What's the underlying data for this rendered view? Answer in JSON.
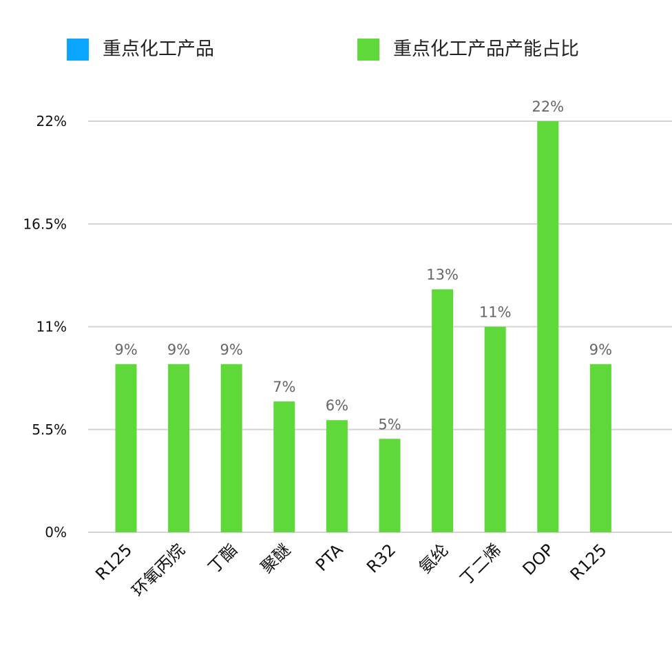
{
  "legend": [
    {
      "label": "重点化工产品",
      "color": "#0aa5ff"
    },
    {
      "label": "重点化工产品产能占比",
      "color": "#5fd83a"
    }
  ],
  "chart_data": {
    "type": "bar",
    "categories": [
      "R125",
      "环氧丙烷",
      "丁酯",
      "聚醚",
      "PTA",
      "R32",
      "氨纶",
      "丁二烯",
      "DOP",
      "R125"
    ],
    "series": [
      {
        "name": "重点化工产品产能占比",
        "values": [
          9,
          9,
          9,
          7,
          6,
          5,
          13,
          11,
          22,
          9
        ],
        "color": "#5fd83a"
      }
    ],
    "value_labels": [
      "9%",
      "9%",
      "9%",
      "7%",
      "6%",
      "5%",
      "13%",
      "11%",
      "22%",
      "9%"
    ],
    "yticks": [
      0,
      5.5,
      11,
      16.5,
      22
    ],
    "ytick_labels": [
      "0%",
      "5.5%",
      "11%",
      "16.5%",
      "22%"
    ],
    "ylim": [
      0,
      22
    ],
    "grid": true,
    "legend_position": "top"
  }
}
